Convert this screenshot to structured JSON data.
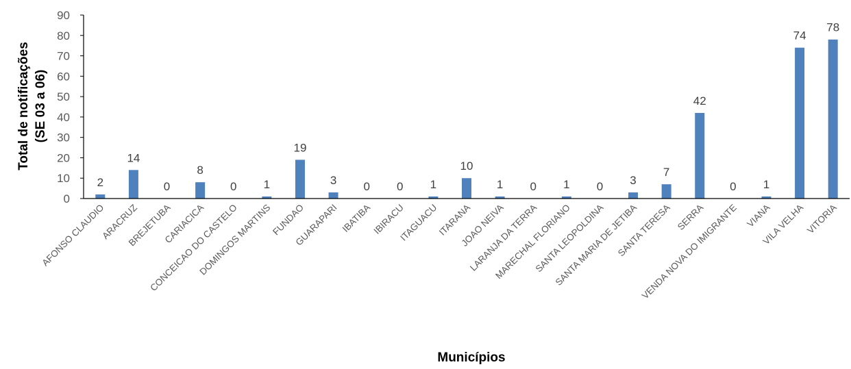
{
  "chart_data": {
    "type": "bar",
    "xlabel": "Municípios",
    "ylabel": [
      "Total de notificações",
      "(SE 03 a 06)"
    ],
    "ylim": [
      0,
      90
    ],
    "yticks": [
      0,
      10,
      20,
      30,
      40,
      50,
      60,
      70,
      80,
      90
    ],
    "grid": false,
    "legend": "none",
    "bar_color": "#4F81BD",
    "categories": [
      "AFONSO CLAUDIO",
      "ARACRUZ",
      "BREJETUBA",
      "CARIACICA",
      "CONCEICAO DO CASTELO",
      "DOMINGOS MARTINS",
      "FUNDAO",
      "GUARAPARI",
      "IBATIBA",
      "IBIRACU",
      "ITAGUACU",
      "ITARANA",
      "JOAO NEIVA",
      "LARANJA DA TERRA",
      "MARECHAL FLORIANO",
      "SANTA LEOPOLDINA",
      "SANTA MARIA DE JETIBA",
      "SANTA TERESA",
      "SERRA",
      "VENDA NOVA DO IMIGRANTE",
      "VIANA",
      "VILA VELHA",
      "VITORIA"
    ],
    "values": [
      2,
      14,
      0,
      8,
      0,
      1,
      19,
      3,
      0,
      0,
      1,
      10,
      1,
      0,
      1,
      0,
      3,
      7,
      42,
      0,
      1,
      74,
      78
    ]
  }
}
